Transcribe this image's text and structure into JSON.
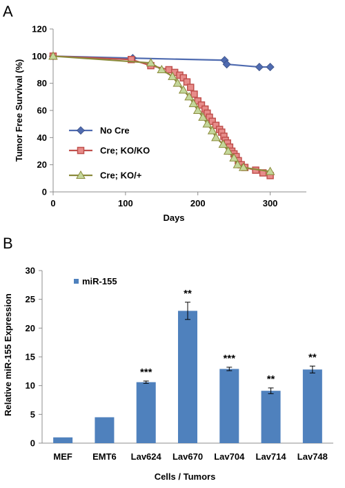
{
  "panels": [
    "A",
    "B"
  ],
  "chart_data": [
    {
      "type": "line",
      "xlabel": "Days",
      "ylabel": "Tumor Free Survival (%)",
      "xlim": [
        0,
        350
      ],
      "ylim": [
        0,
        120
      ],
      "xticks": [
        "0",
        "100",
        "200",
        "300"
      ],
      "yticks": [
        "0",
        "20",
        "40",
        "60",
        "80",
        "100",
        "120"
      ],
      "grid": false,
      "legend_position": "left",
      "colors": {
        "no_cre": "#4F6BB0",
        "ko_ko": "#C0504D",
        "ko_het": "#9BBB59"
      },
      "series": [
        {
          "name": "No Cre",
          "marker": "diamond",
          "x": [
            0,
            110,
            237,
            240,
            285,
            300
          ],
          "y": [
            100,
            98.5,
            97,
            94,
            92,
            92
          ]
        },
        {
          "name": "Cre; KO/KO",
          "marker": "square",
          "x": [
            0,
            108,
            135,
            160,
            168,
            175,
            180,
            185,
            190,
            195,
            200,
            205,
            210,
            213,
            216,
            220,
            225,
            230,
            233,
            236,
            238,
            241,
            244,
            247,
            250,
            253,
            256,
            260,
            265,
            280,
            290,
            300
          ],
          "y": [
            100,
            97.5,
            93,
            90,
            88,
            86,
            84,
            81,
            77,
            72,
            67,
            64,
            61,
            58,
            55,
            52,
            49,
            46,
            44,
            41,
            38,
            36,
            33,
            30,
            28,
            26,
            23,
            20,
            18,
            16,
            14,
            12
          ]
        },
        {
          "name": "Cre; KO/+",
          "marker": "triangle",
          "x": [
            0,
            135,
            150,
            165,
            172,
            180,
            188,
            194,
            200,
            207,
            213,
            220,
            225,
            235,
            242,
            250,
            255,
            263,
            300
          ],
          "y": [
            100,
            95,
            90,
            85,
            80,
            75,
            70,
            65,
            60,
            55,
            50,
            45,
            40,
            35,
            30,
            25,
            20,
            18,
            15
          ]
        }
      ]
    },
    {
      "type": "bar",
      "xlabel": "Cells / Tumors",
      "ylabel": "Relative miR-155 Expression",
      "ylim": [
        0,
        30
      ],
      "yticks": [
        "0",
        "5",
        "10",
        "15",
        "20",
        "25",
        "30"
      ],
      "grid": false,
      "legend_position": "top-left",
      "color": "#4F81BD",
      "categories": [
        "MEF",
        "EMT6",
        "Lav624",
        "Lav670",
        "Lav704",
        "Lav714",
        "Lav748"
      ],
      "series": [
        {
          "name": "miR-155",
          "values": [
            1.0,
            4.5,
            10.6,
            23.0,
            12.9,
            9.1,
            12.8
          ],
          "errors": [
            0.05,
            0.05,
            0.2,
            1.5,
            0.3,
            0.5,
            0.6
          ],
          "significance": [
            "",
            "",
            "***",
            "**",
            "***",
            "**",
            "**"
          ]
        }
      ]
    }
  ]
}
